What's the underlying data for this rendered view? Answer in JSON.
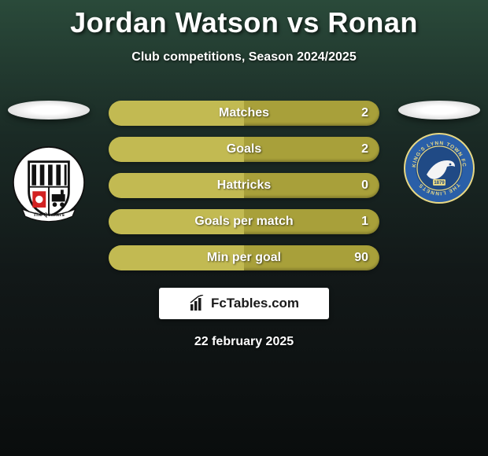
{
  "title": "Jordan Watson vs Ronan",
  "subtitle": "Club competitions, Season 2024/2025",
  "date": "22 february 2025",
  "watermark": "FcTables.com",
  "bar_style": {
    "base_color": "#a8a03a",
    "fill_color": "#c2ba52",
    "height": 32,
    "radius": 16,
    "label_fontsize": 16,
    "text_color": "#ffffff"
  },
  "stats": [
    {
      "label": "Matches",
      "value": "2",
      "fill_pct": 50
    },
    {
      "label": "Goals",
      "value": "2",
      "fill_pct": 50
    },
    {
      "label": "Hattricks",
      "value": "0",
      "fill_pct": 50
    },
    {
      "label": "Goals per match",
      "value": "1",
      "fill_pct": 50
    },
    {
      "label": "Min per goal",
      "value": "90",
      "fill_pct": 50
    }
  ],
  "left_crest": {
    "name": "The Quakers",
    "shield_bg": "#ffffff",
    "shield_border": "#111111",
    "accent": "#d22222",
    "stripe": "#111111"
  },
  "right_crest": {
    "name": "King's Lynn Town FC — The Linnets",
    "outer": "#2a5fa8",
    "inner": "#e8d884",
    "bird": "#f4f4f4",
    "founded": "1879"
  }
}
